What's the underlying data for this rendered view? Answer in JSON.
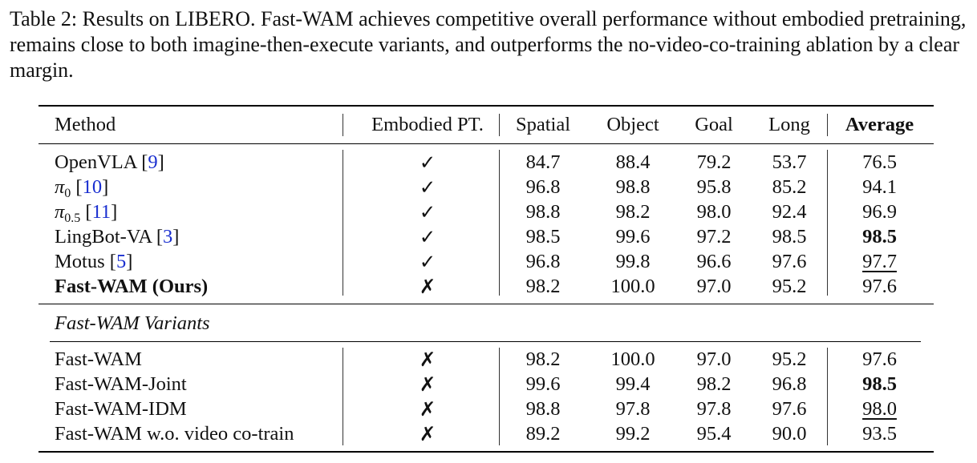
{
  "caption": "Table 2: Results on LIBERO. Fast-WAM achieves competitive overall performance without embodied pretraining, remains close to both imagine-then-execute variants, and outperforms the no-video-co-training ablation by a clear margin.",
  "headers": {
    "method": "Method",
    "embodied": "Embodied PT.",
    "spatial": "Spatial",
    "object": "Object",
    "goal": "Goal",
    "long": "Long",
    "average": "Average"
  },
  "glyphs": {
    "check": "✓",
    "cross": "✗",
    "pi": "π"
  },
  "section_label": "Fast-WAM Variants",
  "baselines": [
    {
      "name": "OpenVLA",
      "ref": "9",
      "embodied": "✓",
      "spatial": "84.7",
      "object": "88.4",
      "goal": "79.2",
      "long": "53.7",
      "average": "76.5"
    },
    {
      "name": "π",
      "sub": "0",
      "ref": "10",
      "embodied": "✓",
      "spatial": "96.8",
      "object": "98.8",
      "goal": "95.8",
      "long": "85.2",
      "average": "94.1"
    },
    {
      "name": "π",
      "sub": "0.5",
      "ref": "11",
      "embodied": "✓",
      "spatial": "98.8",
      "object": "98.2",
      "goal": "98.0",
      "long": "92.4",
      "average": "96.9"
    },
    {
      "name": "LingBot-VA",
      "ref": "3",
      "embodied": "✓",
      "spatial": "98.5",
      "object": "99.6",
      "goal": "97.2",
      "long": "98.5",
      "average": "98.5"
    },
    {
      "name": "Motus",
      "ref": "5",
      "embodied": "✓",
      "spatial": "96.8",
      "object": "99.8",
      "goal": "96.6",
      "long": "97.6",
      "average": "97.7"
    },
    {
      "name": "Fast-WAM (Ours)",
      "embodied": "✗",
      "spatial": "98.2",
      "object": "100.0",
      "goal": "97.0",
      "long": "95.2",
      "average": "97.6"
    }
  ],
  "variants": [
    {
      "name": "Fast-WAM",
      "embodied": "✗",
      "spatial": "98.2",
      "object": "100.0",
      "goal": "97.0",
      "long": "95.2",
      "average": "97.6"
    },
    {
      "name": "Fast-WAM-Joint",
      "embodied": "✗",
      "spatial": "99.6",
      "object": "99.4",
      "goal": "98.2",
      "long": "96.8",
      "average": "98.5"
    },
    {
      "name": "Fast-WAM-IDM",
      "embodied": "✗",
      "spatial": "98.8",
      "object": "97.8",
      "goal": "97.8",
      "long": "97.6",
      "average": "98.0"
    },
    {
      "name": "Fast-WAM w.o. video co-train",
      "embodied": "✗",
      "spatial": "89.2",
      "object": "99.2",
      "goal": "95.4",
      "long": "90.0",
      "average": "93.5"
    }
  ]
}
